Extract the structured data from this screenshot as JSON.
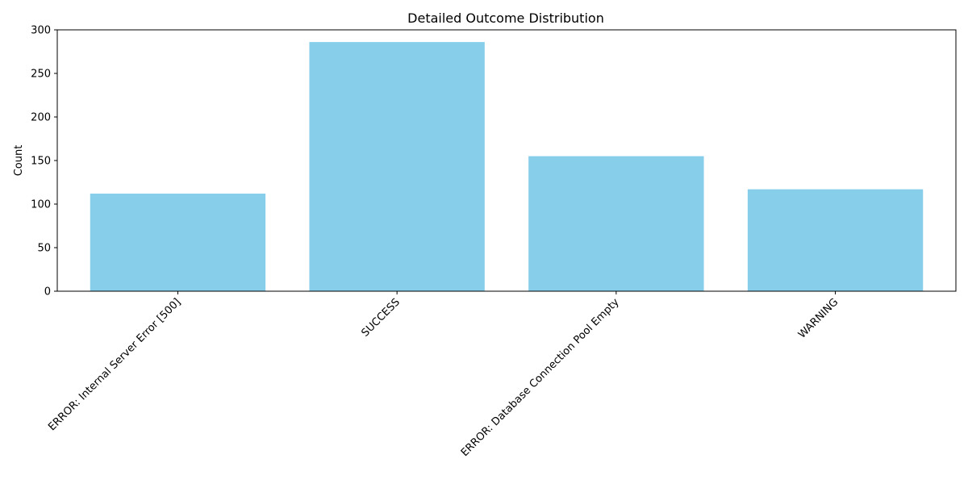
{
  "chart_data": {
    "type": "bar",
    "title": "Detailed Outcome Distribution",
    "xlabel": "",
    "ylabel": "Count",
    "categories": [
      "ERROR: Internal Server Error [500]",
      "SUCCESS",
      "ERROR: Database Connection Pool Empty",
      "WARNING"
    ],
    "values": [
      112,
      286,
      155,
      117
    ],
    "ylim": [
      0,
      300
    ],
    "yticks": [
      0,
      50,
      100,
      150,
      200,
      250,
      300
    ],
    "grid": false,
    "legend": "none",
    "colors": {
      "bar": "#87ceeb",
      "axis": "#000000"
    }
  }
}
